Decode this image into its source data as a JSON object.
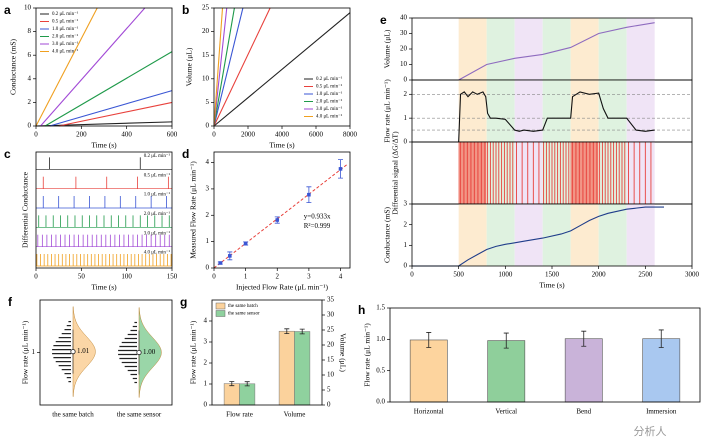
{
  "watermark": "分析人",
  "chart_data": [
    {
      "type": "line",
      "panel": "a",
      "xlabel": "Time (s)",
      "ylabel": "Conductance (mS)",
      "xlim": [
        0,
        600
      ],
      "xticks": [
        0,
        200,
        400,
        600
      ],
      "ylim": [
        0,
        10
      ],
      "yticks": [
        0,
        2,
        4,
        6,
        8,
        10
      ],
      "legend": "upper left",
      "series": [
        {
          "name": "0.2 μL min⁻¹",
          "color": "#222222",
          "x": [
            0,
            600
          ],
          "values": [
            0,
            0.35
          ]
        },
        {
          "name": "0.5 μL min⁻¹",
          "color": "#e8413c",
          "x": [
            100,
            600
          ],
          "values": [
            0,
            2.0
          ]
        },
        {
          "name": "1.0 μL min⁻¹",
          "color": "#3a56d4",
          "x": [
            60,
            600
          ],
          "values": [
            0,
            3.0
          ]
        },
        {
          "name": "2.0 μL min⁻¹",
          "color": "#1f9a4a",
          "x": [
            40,
            600
          ],
          "values": [
            0,
            6.3
          ]
        },
        {
          "name": "3.0 μL min⁻¹",
          "color": "#a24ad6",
          "x": [
            20,
            480
          ],
          "values": [
            0,
            10
          ]
        },
        {
          "name": "4.0 μL min⁻¹",
          "color": "#f0a020",
          "x": [
            0,
            270
          ],
          "values": [
            0,
            10
          ]
        }
      ]
    },
    {
      "type": "line",
      "panel": "b",
      "xlabel": "Time (s)",
      "ylabel": "Volume (μL)",
      "xlim": [
        0,
        8000
      ],
      "xticks": [
        0,
        2000,
        4000,
        6000,
        8000
      ],
      "ylim": [
        0,
        25
      ],
      "yticks": [
        0,
        5,
        10,
        15,
        20,
        25
      ],
      "legend": "lower right",
      "series": [
        {
          "name": "0.2 μL min⁻¹",
          "color": "#222222",
          "x": [
            0,
            8000
          ],
          "values": [
            0,
            24
          ]
        },
        {
          "name": "0.5 μL min⁻¹",
          "color": "#e8413c",
          "x": [
            0,
            3300
          ],
          "values": [
            0,
            25
          ]
        },
        {
          "name": "1.0 μL min⁻¹",
          "color": "#3a56d4",
          "x": [
            0,
            1700
          ],
          "values": [
            0,
            25
          ]
        },
        {
          "name": "2.0 μL min⁻¹",
          "color": "#1f9a4a",
          "x": [
            0,
            1200
          ],
          "values": [
            0,
            25
          ]
        },
        {
          "name": "3.0 μL min⁻¹",
          "color": "#a24ad6",
          "x": [
            0,
            750
          ],
          "values": [
            0,
            25
          ]
        },
        {
          "name": "4.0 μL min⁻¹",
          "color": "#f0a020",
          "x": [
            0,
            500
          ],
          "values": [
            0,
            25
          ]
        }
      ]
    },
    {
      "type": "spike",
      "panel": "c",
      "xlabel": "Time (s)",
      "ylabel": "Differential Conductance",
      "xlim": [
        0,
        150
      ],
      "xticks": [
        0,
        50,
        100,
        150
      ],
      "series": [
        {
          "name": "0.2 μL min⁻¹",
          "color": "#222222",
          "x": [
            15,
            115
          ]
        },
        {
          "name": "0.5 μL min⁻¹",
          "color": "#e8413c",
          "x": [
            8,
            44,
            78,
            112,
            146
          ]
        },
        {
          "name": "1.0 μL min⁻¹",
          "color": "#3a56d4",
          "x": [
            8,
            25,
            42,
            59,
            76,
            93,
            110,
            127,
            144
          ]
        },
        {
          "name": "2.0 μL min⁻¹",
          "color": "#1f9a4a",
          "x": [
            3,
            11,
            19,
            27,
            35,
            43,
            51,
            59,
            67,
            75,
            83,
            91,
            99,
            107,
            115,
            123,
            131,
            139,
            147
          ]
        },
        {
          "name": "3.0 μL min⁻¹",
          "color": "#a24ad6",
          "x": [
            2,
            7,
            12,
            17,
            22,
            27,
            32,
            37,
            42,
            47,
            52,
            57,
            62,
            67,
            72,
            77,
            82,
            87,
            92,
            97,
            102,
            107,
            112,
            117,
            122,
            127,
            132,
            137,
            142,
            147
          ]
        },
        {
          "name": "4.0 μL min⁻¹",
          "color": "#f0a020",
          "x": [
            1,
            5,
            9,
            13,
            17,
            21,
            25,
            29,
            33,
            37,
            41,
            45,
            49,
            53,
            57,
            61,
            65,
            69,
            73,
            77,
            81,
            85,
            89,
            93,
            97,
            101,
            105,
            109,
            113,
            117,
            121,
            125,
            129,
            133,
            137,
            141,
            145,
            149
          ]
        }
      ]
    },
    {
      "type": "scatter",
      "panel": "d",
      "xlabel": "Injected Flow Rate (μL min⁻¹)",
      "ylabel": "Measured Flow Rate (μL min⁻¹)",
      "xlim": [
        0,
        4.3
      ],
      "xticks": [
        0,
        1,
        2,
        3,
        4
      ],
      "ylim": [
        0,
        4.4
      ],
      "yticks": [
        0,
        1,
        2,
        3,
        4
      ],
      "color": "#3a56d4",
      "fit_color": "#e8413c",
      "fit_slope": 0.933,
      "x": [
        0.2,
        0.5,
        1,
        2,
        3,
        4
      ],
      "values": [
        0.19,
        0.46,
        0.93,
        1.82,
        2.78,
        3.76
      ],
      "errors": [
        0.04,
        0.15,
        0.06,
        0.12,
        0.3,
        0.35
      ],
      "annotations": [
        "y=0.933x",
        "R²=0.999"
      ]
    },
    {
      "type": "line",
      "panel": "e",
      "ylabel": "Volume (μL)",
      "xlim": [
        0,
        3000
      ],
      "ylim": [
        0,
        40
      ],
      "yticks": [
        0,
        10,
        20,
        30,
        40
      ],
      "bands": [
        {
          "start": 500,
          "end": 800,
          "color": "#fdebd0"
        },
        {
          "start": 800,
          "end": 1100,
          "color": "#dff2e0"
        },
        {
          "start": 1100,
          "end": 1400,
          "color": "#f0e4f6"
        },
        {
          "start": 1400,
          "end": 1700,
          "color": "#dff2e0"
        },
        {
          "start": 1700,
          "end": 2000,
          "color": "#fdebd0"
        },
        {
          "start": 2000,
          "end": 2300,
          "color": "#dff2e0"
        },
        {
          "start": 2300,
          "end": 2600,
          "color": "#f0e4f6"
        }
      ],
      "series": [
        {
          "color": "#8e6bbf",
          "x": [
            500,
            800,
            1100,
            1400,
            1700,
            2000,
            2300,
            2600
          ],
          "values": [
            0,
            10,
            14,
            16.5,
            21,
            30,
            34,
            37
          ]
        }
      ]
    },
    {
      "type": "line",
      "ylabel": "Flow rate (μL min⁻¹)",
      "xlim": [
        0,
        3000
      ],
      "ylim": [
        0,
        2.6
      ],
      "yticks": [
        0,
        1,
        2
      ],
      "reference_lines": [
        2,
        1,
        0.5
      ],
      "series": [
        {
          "color": "#111111",
          "x": [
            500,
            520,
            560,
            600,
            650,
            700,
            760,
            790,
            810,
            840,
            900,
            1000,
            1100,
            1150,
            1200,
            1300,
            1400,
            1450,
            1500,
            1600,
            1700,
            1720,
            1800,
            1900,
            2000,
            2050,
            2100,
            2200,
            2300,
            2400,
            2500,
            2600
          ],
          "values": [
            0,
            2.0,
            2.1,
            1.9,
            2.1,
            2.0,
            2.1,
            1.9,
            1.2,
            1.0,
            1.0,
            0.95,
            0.5,
            0.45,
            0.5,
            0.45,
            0.5,
            1.0,
            1.0,
            1.0,
            1.0,
            1.9,
            2.1,
            2.0,
            2.05,
            1.4,
            1.0,
            1.0,
            1.0,
            0.5,
            0.45,
            0.5
          ]
        }
      ]
    },
    {
      "type": "spike",
      "ylabel": "Differential signal (ΔG/ΔT)",
      "xlim": [
        0,
        3000
      ],
      "series": [
        {
          "color": "#e8413c",
          "x": [
            505,
            520,
            535,
            550,
            565,
            580,
            595,
            610,
            625,
            640,
            655,
            670,
            685,
            700,
            715,
            730,
            745,
            760,
            775,
            790,
            810,
            840,
            870,
            900,
            930,
            960,
            990,
            1020,
            1050,
            1080,
            1120,
            1180,
            1240,
            1300,
            1360,
            1410,
            1440,
            1470,
            1500,
            1530,
            1560,
            1590,
            1620,
            1650,
            1680,
            1705,
            1720,
            1735,
            1750,
            1765,
            1780,
            1795,
            1810,
            1825,
            1840,
            1855,
            1870,
            1885,
            1900,
            1915,
            1930,
            1945,
            1960,
            1975,
            1990,
            2010,
            2040,
            2070,
            2100,
            2130,
            2160,
            2190,
            2220,
            2250,
            2280,
            2320,
            2380,
            2440,
            2500,
            2560
          ]
        }
      ]
    },
    {
      "type": "line",
      "xlabel": "Time (s)",
      "ylabel": "Conductance (mS)",
      "xlim": [
        0,
        3000
      ],
      "xticks": [
        0,
        500,
        1000,
        1500,
        2000,
        2500,
        3000
      ],
      "ylim": [
        0,
        3
      ],
      "yticks": [
        0,
        1,
        2,
        3
      ],
      "series": [
        {
          "color": "#1f3d8a",
          "x": [
            0,
            500,
            600,
            700,
            800,
            900,
            1000,
            1100,
            1200,
            1400,
            1600,
            1700,
            1800,
            1900,
            2000,
            2100,
            2300,
            2500,
            2700
          ],
          "values": [
            0,
            0,
            0.3,
            0.55,
            0.8,
            0.95,
            1.05,
            1.12,
            1.2,
            1.35,
            1.55,
            1.7,
            1.95,
            2.2,
            2.4,
            2.55,
            2.75,
            2.85,
            2.85
          ]
        }
      ]
    },
    {
      "type": "violin",
      "panel": "f",
      "ylabel": "Flow rate (μL min⁻¹)",
      "ylim": [
        0.4,
        1.6
      ],
      "yticks": [
        1
      ],
      "categories": [
        "the same batch",
        "the same sensor"
      ],
      "colors": [
        "#fbd29c",
        "#8fd19e"
      ],
      "values": [
        1.01,
        1.0
      ],
      "value_labels": [
        "1.01",
        "1.00"
      ]
    },
    {
      "type": "bar",
      "panel": "g",
      "ylabel": "Flow rate (μL min⁻¹)",
      "y2label": "Volume (μL)",
      "ylim": [
        0,
        5
      ],
      "yticks": [
        0,
        1,
        2,
        3,
        4
      ],
      "y2lim": [
        0,
        35
      ],
      "y2ticks": [
        0,
        5,
        10,
        15,
        20,
        25,
        30,
        35
      ],
      "categories": [
        "Flow rate",
        "Volume"
      ],
      "category_axis": [
        "y",
        "y2"
      ],
      "legend": "upper left",
      "series": [
        {
          "name": "the same batch",
          "color": "#fbd29c",
          "values": [
            1.02,
            24.6
          ],
          "errors": [
            0.1,
            0.8
          ]
        },
        {
          "name": "the same sensor",
          "color": "#8fd19e",
          "values": [
            1.01,
            24.5
          ],
          "errors": [
            0.1,
            0.8
          ]
        }
      ]
    },
    {
      "type": "bar",
      "panel": "h",
      "ylabel": "Flow rate (μL min⁻¹)",
      "ylim": [
        0,
        1.5
      ],
      "yticks": [
        {
          "value": 0,
          "label": "0.0"
        },
        0.5,
        {
          "value": 1,
          "label": "1.0"
        },
        1.5
      ],
      "categories": [
        "Horizontal",
        "Vertical",
        "Bend",
        "Immersion"
      ],
      "colors": [
        "#fdd49e",
        "#8fcf9b",
        "#c9b3d9",
        "#a9c8f0"
      ],
      "values": [
        0.99,
        0.98,
        1.01,
        1.01
      ],
      "errors": [
        0.12,
        0.12,
        0.12,
        0.14
      ]
    }
  ]
}
